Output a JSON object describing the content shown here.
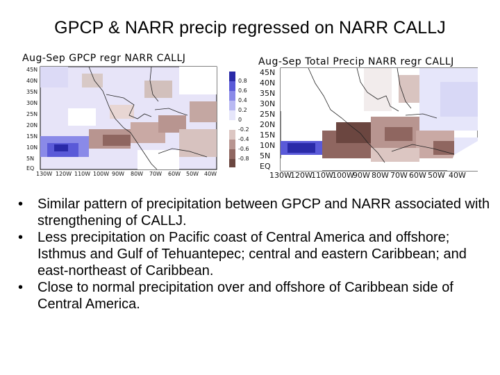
{
  "slide": {
    "title": "GPCP & NARR precip regressed on NARR CALLJ"
  },
  "left_map": {
    "label": "Aug-Sep  GPCP  regr  NARR  CALLJ",
    "lat_labels": [
      "45N",
      "40N",
      "35N",
      "30N",
      "25N",
      "20N",
      "15N",
      "10N",
      "5N",
      "EQ"
    ],
    "lon_labels": [
      "130W",
      "120W",
      "110W",
      "100W",
      "90W",
      "80W",
      "70W",
      "60W",
      "50W",
      "40W"
    ]
  },
  "right_map": {
    "label": "Aug-Sep  Total  Precip  NARR  regr  CALLJ",
    "lat_labels": [
      "45N",
      "40N",
      "35N",
      "30N",
      "25N",
      "20N",
      "15N",
      "10N",
      "5N",
      "EQ"
    ],
    "lon_labels": [
      "130W",
      "120W",
      "110W",
      "100W",
      "90W",
      "80W",
      "70W",
      "60W",
      "50W",
      "40W"
    ]
  },
  "colorbar": {
    "labels": [
      "0.8",
      "0.6",
      "0.4",
      "0.2",
      "0",
      "-0.2",
      "-0.4",
      "-0.6",
      "-0.8"
    ],
    "colors": [
      "#2a2aa8",
      "#5a5ad8",
      "#8a8ae8",
      "#b9b9f2",
      "#e6e6fa",
      "#ffffff",
      "#dcc6c2",
      "#b89590",
      "#8f6660",
      "#6b4640"
    ]
  },
  "bullets": [
    {
      "symbol": "•",
      "text": "Similar pattern of precipitation between GPCP and NARR associated with strengthening of CALLJ."
    },
    {
      "symbol": "•",
      "text": "Less precipitation on Pacific coast of Central America and offshore; Isthmus and Gulf of Tehuantepec; central and eastern Caribbean; and east-northeast of Caribbean."
    },
    {
      "symbol": "•",
      "text": "Close to normal precipitation over and offshore of Caribbean side of Central America."
    }
  ]
}
